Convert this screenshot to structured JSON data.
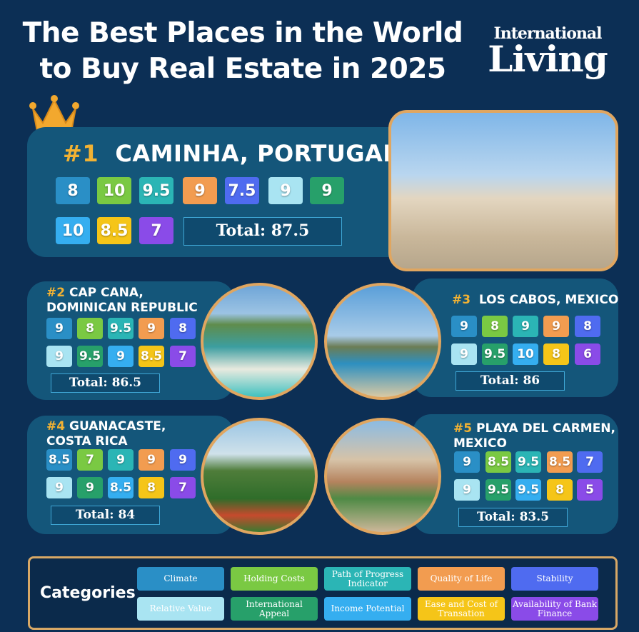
{
  "header": {
    "title_line1": "The Best Places in the World",
    "title_line2": "to Buy Real Estate in 2025",
    "logo_top": "International",
    "logo_bottom": "Living"
  },
  "colors": [
    "#2a8fc6",
    "#7ac943",
    "#2bb5b5",
    "#f29c50",
    "#4f6bf0",
    "#a9e4f2",
    "#27a06a",
    "#35aef0",
    "#f5c518",
    "#8a4be8"
  ],
  "places": [
    {
      "rank": "#1",
      "name": "CAMINHA, PORTUGAL",
      "scores": [
        "8",
        "10",
        "9.5",
        "9",
        "7.5",
        "9",
        "9",
        "10",
        "8.5",
        "7"
      ],
      "total": "Total: 87.5"
    },
    {
      "rank": "#2",
      "name": "CAP CANA,",
      "name2": "DOMINICAN REPUBLIC",
      "scores": [
        "9",
        "8",
        "9.5",
        "9",
        "8",
        "9",
        "9.5",
        "9",
        "8.5",
        "7"
      ],
      "total": "Total: 86.5"
    },
    {
      "rank": "#3",
      "name": "LOS CABOS, MEXICO",
      "scores": [
        "9",
        "8",
        "9",
        "9",
        "8",
        "9",
        "9.5",
        "10",
        "8",
        "6"
      ],
      "total": "Total: 86"
    },
    {
      "rank": "#4",
      "name": "GUANACASTE,",
      "name2": "COSTA RICA",
      "scores": [
        "8.5",
        "7",
        "9",
        "9",
        "9",
        "9",
        "9",
        "8.5",
        "8",
        "7"
      ],
      "total": "Total: 84"
    },
    {
      "rank": "#5",
      "name": "PLAYA DEL CARMEN,",
      "name2": "MEXICO",
      "scores": [
        "9",
        "8.5",
        "9.5",
        "8.5",
        "7",
        "9",
        "9.5",
        "9.5",
        "8",
        "5"
      ],
      "total": "Total: 83.5"
    }
  ],
  "legend": {
    "title": "Categories",
    "categories": [
      "Climate",
      "Holding Costs",
      "Path of Progress Indicator",
      "Quality of Life",
      "Stability",
      "Relative Value",
      "International Appeal",
      "Income Potential",
      "Ease and Cost of Transation",
      "Availability of Bank Finance"
    ]
  }
}
